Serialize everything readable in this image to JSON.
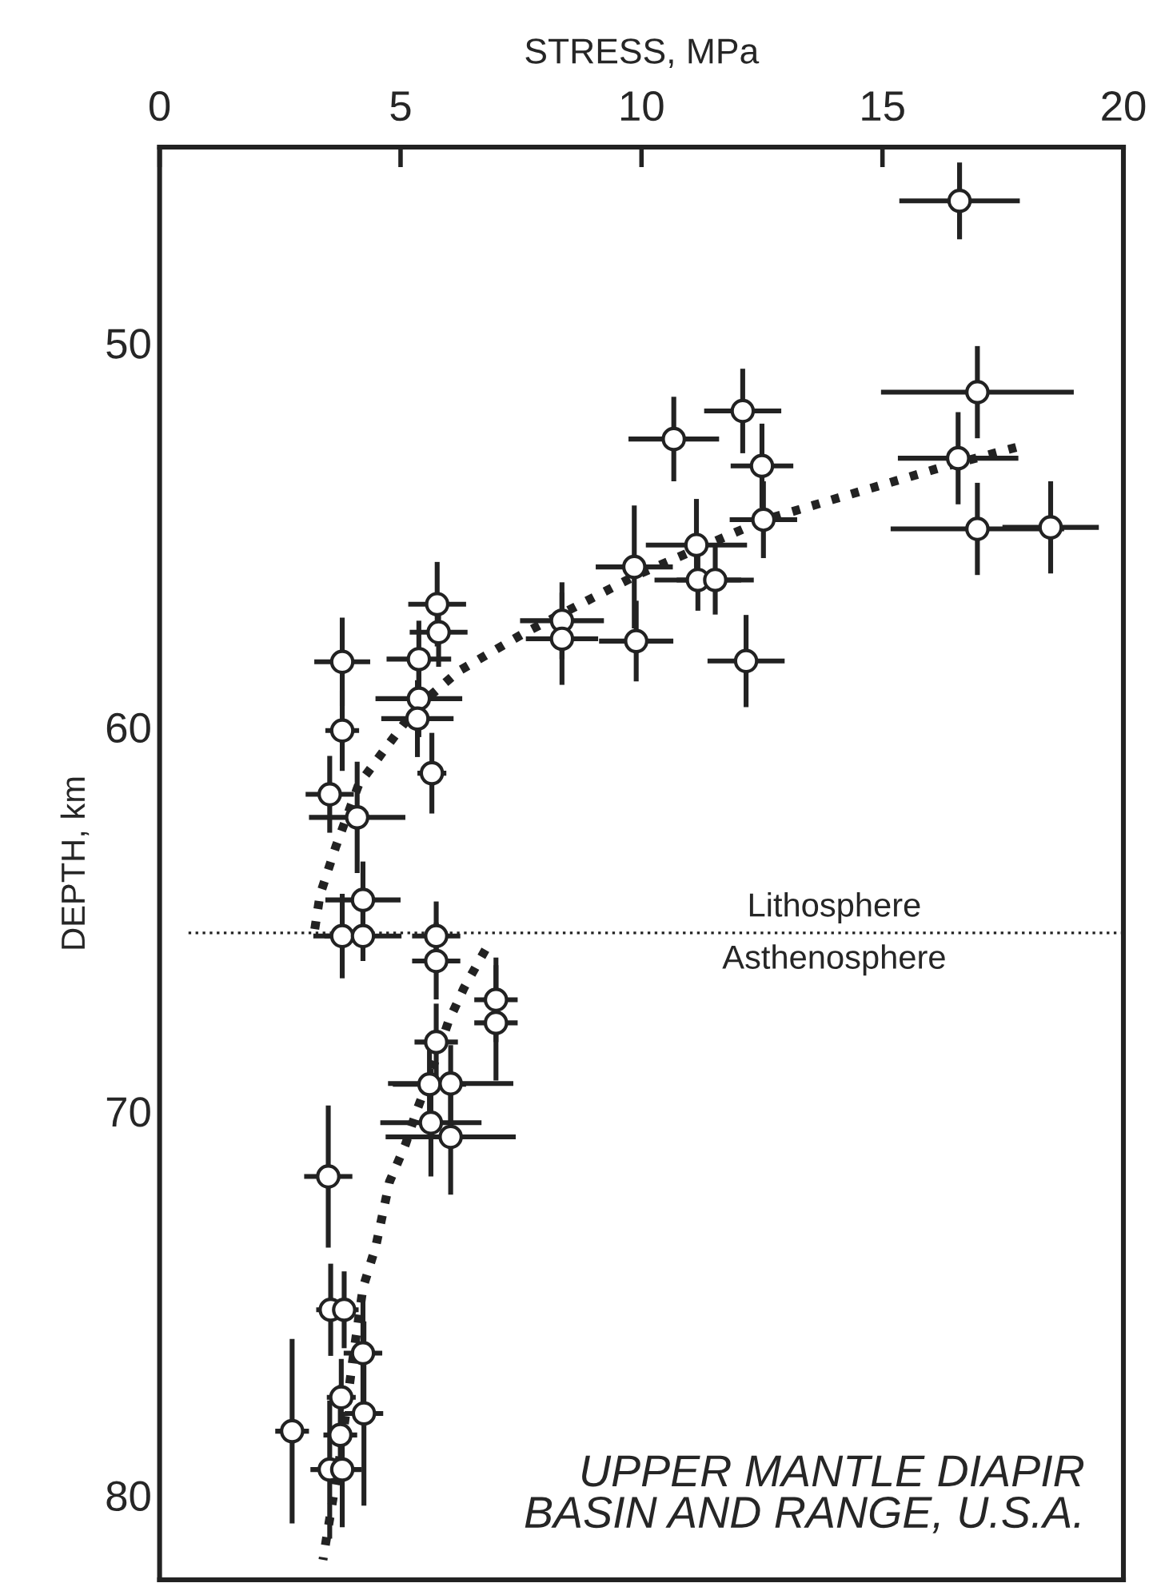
{
  "chart_data": {
    "type": "scatter",
    "xlabel": "STRESS, MPa",
    "ylabel": "DEPTH, km",
    "xlim": [
      0,
      20
    ],
    "xticks": [
      0,
      5,
      10,
      15,
      20
    ],
    "ylim": [
      82.2,
      44.9
    ],
    "yticks": [
      50,
      60,
      70,
      80
    ],
    "grid": false,
    "series": [
      {
        "color": "#222222",
        "marker": "circle",
        "x": [
          16.6,
          16.97,
          16.57,
          16.97,
          18.49,
          10.67,
          12.1,
          12.5,
          12.53,
          11.14,
          11.17,
          11.53,
          9.85,
          9.89,
          8.35,
          8.35,
          12.17,
          5.76,
          5.79,
          3.79,
          5.38,
          5.38,
          5.35,
          3.79,
          5.65,
          3.53,
          4.1,
          4.22,
          3.79,
          4.22,
          5.74,
          5.74,
          6.98,
          6.98,
          5.74,
          5.6,
          6.04,
          5.63,
          6.04,
          3.5,
          3.55,
          3.83,
          4.22,
          3.77,
          4.24,
          2.75,
          3.75,
          3.53,
          3.79
        ],
        "values": [
          46.3,
          51.28,
          53.0,
          54.84,
          54.8,
          52.5,
          51.77,
          53.2,
          54.6,
          55.26,
          56.17,
          56.17,
          55.83,
          57.76,
          57.23,
          57.7,
          58.28,
          56.8,
          57.53,
          58.3,
          58.23,
          59.26,
          59.78,
          60.09,
          61.2,
          61.75,
          62.35,
          64.5,
          65.44,
          65.44,
          65.44,
          66.09,
          67.1,
          67.7,
          68.2,
          69.3,
          69.28,
          70.3,
          70.67,
          71.7,
          75.17,
          75.17,
          76.3,
          77.45,
          77.87,
          78.33,
          78.43,
          79.33,
          79.33
        ],
        "xerrors": [
          1.25,
          2.0,
          1.25,
          1.8,
          1.0,
          0.94,
          0.8,
          0.65,
          0.7,
          1.05,
          0.9,
          0.8,
          0.8,
          0.77,
          0.87,
          0.75,
          0.8,
          0.6,
          0.6,
          0.58,
          0.67,
          0.9,
          0.75,
          0.35,
          0.3,
          0.5,
          1.0,
          0.78,
          0.6,
          0.8,
          0.5,
          0.5,
          0.45,
          0.45,
          0.45,
          0.76,
          1.3,
          1.05,
          1.35,
          0.5,
          0.3,
          0.3,
          0.4,
          0.3,
          0.4,
          0.35,
          0.35,
          0.4,
          0.4
        ],
        "errors": [
          1.0,
          1.2,
          1.2,
          1.2,
          1.2,
          1.1,
          1.1,
          1.1,
          1.0,
          1.2,
          0.8,
          0.9,
          1.6,
          1.05,
          1.0,
          1.2,
          1.2,
          1.1,
          0.9,
          1.15,
          1.0,
          1.0,
          1.0,
          1.05,
          1.05,
          1.0,
          1.45,
          1.0,
          1.1,
          0.65,
          0.9,
          1.0,
          1.1,
          1.5,
          1.0,
          1.0,
          1.0,
          1.4,
          1.5,
          1.85,
          1.2,
          1.0,
          1.5,
          1.0,
          2.4,
          2.4,
          1.3,
          1.8,
          1.5
        ]
      },
      {
        "type": "line",
        "color": "#222222",
        "line_style": "dotted",
        "x": [
          3.22,
          3.33,
          3.66,
          4.13,
          4.66,
          5.32,
          6.21,
          7.54,
          9.89,
          12.56,
          16.19,
          18.0
        ],
        "values": [
          65.26,
          64.36,
          63.1,
          61.5,
          60.6,
          59.5,
          58.54,
          57.57,
          56.05,
          54.6,
          53.25,
          52.64
        ]
      },
      {
        "type": "line",
        "color": "#222222",
        "line_style": "dotted",
        "x": [
          6.76,
          6.32,
          5.99,
          5.65,
          5.32,
          5.1,
          4.77,
          4.49,
          4.22,
          4.0,
          3.77,
          3.39
        ],
        "values": [
          65.8,
          66.78,
          67.68,
          68.93,
          70.04,
          70.87,
          71.84,
          73.5,
          74.6,
          76.55,
          78.77,
          81.68
        ]
      }
    ],
    "ref_lines": [
      {
        "axis": "y",
        "value": 65.36,
        "label": "Lithosphere",
        "line_style": "dotted",
        "color": "#222222"
      }
    ],
    "annotations": [
      "Asthenosphere",
      "UPPER MANTLE DIAPIR\nBASIN AND RANGE, U.S.A."
    ]
  }
}
